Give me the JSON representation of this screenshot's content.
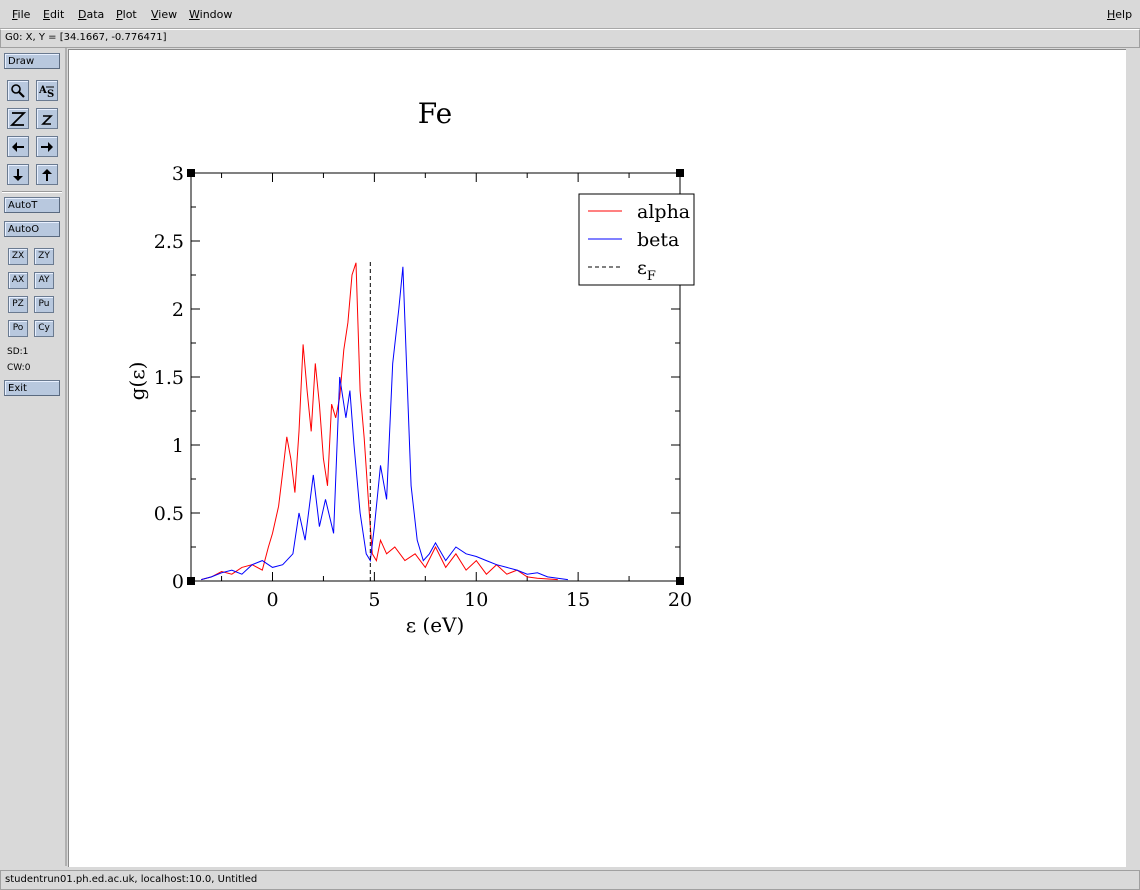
{
  "menubar": {
    "items": [
      {
        "label": "File",
        "accel": "F"
      },
      {
        "label": "Edit",
        "accel": "E"
      },
      {
        "label": "Data",
        "accel": "D"
      },
      {
        "label": "Plot",
        "accel": "P"
      },
      {
        "label": "View",
        "accel": "V"
      },
      {
        "label": "Window",
        "accel": "W"
      }
    ],
    "help": {
      "label": "Help",
      "accel": "H"
    }
  },
  "coords": {
    "text": "G0: X, Y = [34.1667, -0.776471]"
  },
  "toolbar": {
    "draw": "Draw",
    "autot": "AutoT",
    "autoo": "AutoO",
    "zx": "ZX",
    "zy": "ZY",
    "ax": "AX",
    "ay": "AY",
    "pz": "PZ",
    "pu": "Pu",
    "po": "Po",
    "cy": "Cy",
    "sd": "SD:1",
    "cw": "CW:0",
    "exit": "Exit"
  },
  "status": {
    "text": "studentrun01.ph.ed.ac.uk, localhost:10.0, Untitled"
  },
  "chart_data": {
    "type": "line",
    "title": "Fe",
    "xlabel": "ε (eV)",
    "ylabel": "g(ε)",
    "xlim": [
      -4,
      20
    ],
    "ylim": [
      0,
      3
    ],
    "xticks": [
      "0",
      "5",
      "10",
      "15",
      "20"
    ],
    "yticks": [
      "0",
      "0.5",
      "1",
      "1.5",
      "2",
      "2.5",
      "3"
    ],
    "legend_position": "top-right",
    "series": [
      {
        "name": "alpha",
        "color": "#ff0000",
        "x": [
          -3.5,
          -3,
          -2.5,
          -2,
          -1.5,
          -1,
          -0.5,
          -0.2,
          0,
          0.3,
          0.5,
          0.7,
          0.9,
          1.1,
          1.3,
          1.5,
          1.7,
          1.9,
          2.1,
          2.3,
          2.5,
          2.7,
          2.9,
          3.1,
          3.3,
          3.5,
          3.7,
          3.9,
          4.1,
          4.3,
          4.5,
          4.7,
          4.9,
          5.1,
          5.3,
          5.6,
          6,
          6.5,
          7,
          7.5,
          8,
          8.5,
          9,
          9.5,
          10,
          10.5,
          11,
          11.5,
          12,
          12.5,
          13,
          14
        ],
        "values": [
          0.01,
          0.03,
          0.07,
          0.05,
          0.1,
          0.12,
          0.08,
          0.25,
          0.35,
          0.55,
          0.8,
          1.06,
          0.9,
          0.65,
          1.1,
          1.74,
          1.4,
          1.1,
          1.6,
          1.3,
          0.9,
          0.7,
          1.3,
          1.2,
          1.35,
          1.7,
          1.9,
          2.25,
          2.34,
          1.4,
          1.05,
          0.6,
          0.2,
          0.15,
          0.3,
          0.2,
          0.25,
          0.15,
          0.2,
          0.1,
          0.25,
          0.1,
          0.2,
          0.08,
          0.15,
          0.05,
          0.12,
          0.05,
          0.08,
          0.03,
          0.02,
          0.01
        ]
      },
      {
        "name": "beta",
        "color": "#0000ff",
        "x": [
          -3.5,
          -3,
          -2.5,
          -2,
          -1.5,
          -1,
          -0.5,
          0,
          0.5,
          1,
          1.3,
          1.6,
          2,
          2.3,
          2.6,
          3,
          3.3,
          3.6,
          3.8,
          4,
          4.3,
          4.6,
          4.8,
          5,
          5.3,
          5.6,
          5.9,
          6.2,
          6.4,
          6.6,
          6.8,
          7.1,
          7.4,
          7.7,
          8,
          8.5,
          9,
          9.5,
          10,
          10.5,
          11,
          11.5,
          12,
          12.5,
          13,
          13.5,
          14.5
        ],
        "values": [
          0.01,
          0.03,
          0.06,
          0.08,
          0.05,
          0.12,
          0.15,
          0.1,
          0.12,
          0.2,
          0.5,
          0.3,
          0.78,
          0.4,
          0.6,
          0.35,
          1.5,
          1.2,
          1.4,
          1.0,
          0.5,
          0.2,
          0.15,
          0.4,
          0.85,
          0.6,
          1.6,
          2.0,
          2.31,
          1.5,
          0.7,
          0.3,
          0.15,
          0.2,
          0.28,
          0.15,
          0.25,
          0.2,
          0.18,
          0.15,
          0.12,
          0.1,
          0.08,
          0.05,
          0.06,
          0.03,
          0.01
        ]
      },
      {
        "name": "εF",
        "color": "#000000",
        "style": "dashed",
        "x": [
          4.8,
          4.8
        ],
        "values": [
          0,
          2.35
        ]
      }
    ]
  }
}
